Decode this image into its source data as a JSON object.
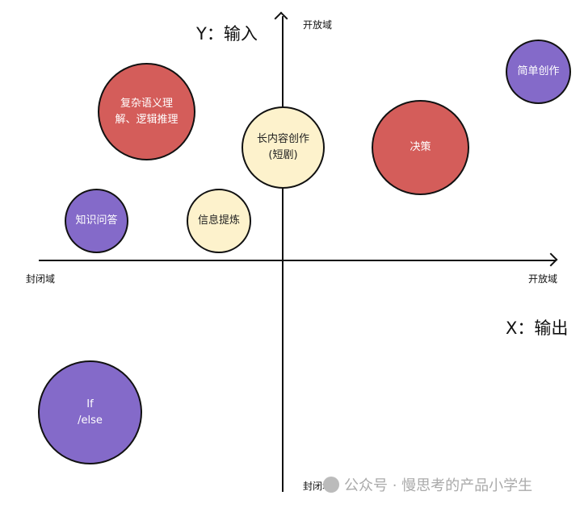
{
  "axes": {
    "y_title": "Y：输入",
    "y_top": "开放域",
    "y_bottom": "封闭域",
    "x_title": "X：输出",
    "x_left": "封闭域",
    "x_right": "开放域"
  },
  "colors": {
    "red": "#d45d5a",
    "purple": "#846ac9",
    "cream": "#fdf2cc"
  },
  "bubbles": [
    {
      "lines": [
        "复杂语义理",
        "解、逻辑推理"
      ],
      "color": "red"
    },
    {
      "lines": [
        "长内容创作",
        "(短剧)"
      ],
      "color": "cream"
    },
    {
      "lines": [
        "决策"
      ],
      "color": "red"
    },
    {
      "lines": [
        "简单创作"
      ],
      "color": "purple"
    },
    {
      "lines": [
        "知识问答"
      ],
      "color": "purple"
    },
    {
      "lines": [
        "信息提炼"
      ],
      "color": "cream"
    },
    {
      "lines": [
        "If",
        "/else"
      ],
      "color": "purple"
    }
  ],
  "watermark": "公众号 · 慢思考的产品小学生"
}
